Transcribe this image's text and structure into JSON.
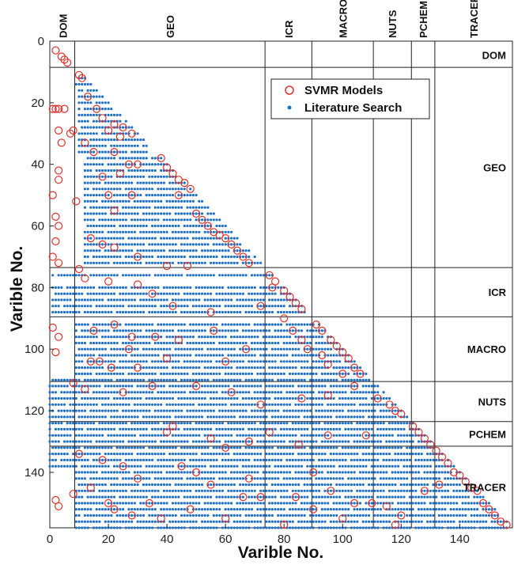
{
  "chart_data": {
    "type": "scatter",
    "xlabel": "Varible No.",
    "ylabel": "Varible No.",
    "xlim": [
      0,
      158
    ],
    "ylim": [
      0,
      158
    ],
    "y_reversed": true,
    "xticks": [
      0,
      20,
      40,
      60,
      80,
      100,
      120,
      140
    ],
    "yticks": [
      0,
      20,
      40,
      60,
      80,
      100,
      120,
      140
    ],
    "grid": false,
    "legend_position": "top-right",
    "legend": [
      {
        "name": "SVMR Models",
        "marker": "open-circle",
        "color": "#e0302a"
      },
      {
        "name": "Literature Search",
        "marker": "filled-dot",
        "color": "#1f6fc4"
      }
    ],
    "group_boundaries": [
      8.5,
      73.5,
      89.5,
      110.5,
      123.5,
      131.5
    ],
    "groups": [
      {
        "name": "DOM",
        "start": 0.5,
        "end": 8.5
      },
      {
        "name": "GEO",
        "start": 8.5,
        "end": 73.5
      },
      {
        "name": "ICR",
        "start": 73.5,
        "end": 89.5
      },
      {
        "name": "MACRO",
        "start": 89.5,
        "end": 110.5
      },
      {
        "name": "NUTS",
        "start": 110.5,
        "end": 123.5
      },
      {
        "name": "PCHEM",
        "start": 123.5,
        "end": 131.5
      },
      {
        "name": "TRACER",
        "start": 131.5,
        "end": 158
      }
    ],
    "series": [
      {
        "name": "Literature Search",
        "note": "dense lower-triangular pattern; representative row ranges listed as [y, x_start, x_end]",
        "row_ranges": [
          [
            12,
            9,
            12
          ],
          [
            14,
            9,
            14
          ],
          [
            16,
            10,
            16
          ],
          [
            18,
            10,
            18
          ],
          [
            20,
            10,
            20
          ],
          [
            22,
            10,
            22
          ],
          [
            24,
            10,
            24
          ],
          [
            26,
            10,
            26
          ],
          [
            28,
            10,
            28
          ],
          [
            30,
            10,
            30
          ],
          [
            32,
            10,
            32
          ],
          [
            34,
            10,
            33
          ],
          [
            36,
            10,
            33
          ],
          [
            38,
            12,
            38
          ],
          [
            40,
            12,
            40
          ],
          [
            42,
            12,
            42
          ],
          [
            44,
            12,
            44
          ],
          [
            46,
            12,
            46
          ],
          [
            48,
            12,
            48
          ],
          [
            50,
            12,
            50
          ],
          [
            52,
            12,
            52
          ],
          [
            54,
            12,
            54
          ],
          [
            56,
            12,
            56
          ],
          [
            58,
            12,
            58
          ],
          [
            60,
            12,
            60
          ],
          [
            62,
            12,
            62
          ],
          [
            64,
            12,
            64
          ],
          [
            66,
            12,
            66
          ],
          [
            68,
            12,
            68
          ],
          [
            70,
            12,
            70
          ],
          [
            72,
            12,
            72
          ],
          [
            76,
            1,
            76
          ],
          [
            80,
            1,
            80
          ],
          [
            82,
            1,
            82
          ],
          [
            84,
            1,
            84
          ],
          [
            86,
            1,
            86
          ],
          [
            88,
            1,
            88
          ],
          [
            92,
            9,
            92
          ],
          [
            94,
            9,
            94
          ],
          [
            96,
            9,
            96
          ],
          [
            98,
            9,
            98
          ],
          [
            100,
            9,
            100
          ],
          [
            102,
            9,
            102
          ],
          [
            104,
            9,
            104
          ],
          [
            106,
            9,
            106
          ],
          [
            108,
            9,
            108
          ],
          [
            110,
            0,
            110
          ],
          [
            112,
            0,
            112
          ],
          [
            114,
            0,
            114
          ],
          [
            116,
            0,
            116
          ],
          [
            118,
            0,
            118
          ],
          [
            120,
            0,
            120
          ],
          [
            122,
            0,
            122
          ],
          [
            124,
            0,
            124
          ],
          [
            126,
            0,
            126
          ],
          [
            128,
            0,
            128
          ],
          [
            130,
            0,
            130
          ],
          [
            132,
            0,
            132
          ],
          [
            134,
            0,
            134
          ],
          [
            136,
            0,
            136
          ],
          [
            138,
            0,
            138
          ],
          [
            140,
            9,
            140
          ],
          [
            142,
            9,
            142
          ],
          [
            144,
            9,
            144
          ],
          [
            146,
            9,
            146
          ],
          [
            148,
            9,
            148
          ],
          [
            150,
            9,
            150
          ],
          [
            152,
            9,
            152
          ],
          [
            154,
            9,
            154
          ],
          [
            156,
            9,
            156
          ],
          [
            158,
            9,
            157
          ]
        ]
      },
      {
        "name": "SVMR Models",
        "points": [
          [
            2,
            3
          ],
          [
            4,
            5
          ],
          [
            5,
            6
          ],
          [
            6,
            7
          ],
          [
            1,
            22
          ],
          [
            2,
            22
          ],
          [
            3,
            22
          ],
          [
            5,
            22
          ],
          [
            3,
            29
          ],
          [
            4,
            33
          ],
          [
            3,
            42
          ],
          [
            3,
            45
          ],
          [
            1,
            50
          ],
          [
            2,
            57
          ],
          [
            3,
            60
          ],
          [
            2,
            65
          ],
          [
            1,
            70
          ],
          [
            3,
            72
          ],
          [
            10,
            11
          ],
          [
            11,
            12
          ],
          [
            13,
            18
          ],
          [
            16,
            22
          ],
          [
            18,
            25
          ],
          [
            22,
            27
          ],
          [
            25,
            28
          ],
          [
            28,
            30
          ],
          [
            20,
            29
          ],
          [
            24,
            31
          ],
          [
            22,
            36
          ],
          [
            15,
            36
          ],
          [
            27,
            40
          ],
          [
            30,
            40
          ],
          [
            18,
            44
          ],
          [
            24,
            43
          ],
          [
            20,
            50
          ],
          [
            28,
            50
          ],
          [
            22,
            55
          ],
          [
            14,
            64
          ],
          [
            18,
            66
          ],
          [
            22,
            67
          ],
          [
            30,
            70
          ],
          [
            9,
            52
          ],
          [
            8,
            29
          ],
          [
            7,
            30
          ],
          [
            12,
            33
          ],
          [
            38,
            38
          ],
          [
            40,
            41
          ],
          [
            42,
            43
          ],
          [
            44,
            45
          ],
          [
            46,
            46
          ],
          [
            48,
            48
          ],
          [
            50,
            56
          ],
          [
            44,
            50
          ],
          [
            52,
            58
          ],
          [
            54,
            60
          ],
          [
            56,
            62
          ],
          [
            58,
            63
          ],
          [
            60,
            64
          ],
          [
            62,
            66
          ],
          [
            64,
            68
          ],
          [
            66,
            70
          ],
          [
            68,
            72
          ],
          [
            75,
            76
          ],
          [
            77,
            78
          ],
          [
            80,
            81
          ],
          [
            82,
            83
          ],
          [
            84,
            85
          ],
          [
            86,
            87
          ],
          [
            76,
            80
          ],
          [
            40,
            73
          ],
          [
            47,
            73
          ],
          [
            10,
            74
          ],
          [
            12,
            77
          ],
          [
            20,
            78
          ],
          [
            30,
            79
          ],
          [
            35,
            82
          ],
          [
            42,
            86
          ],
          [
            55,
            88
          ],
          [
            72,
            86
          ],
          [
            91,
            92
          ],
          [
            93,
            94
          ],
          [
            96,
            97
          ],
          [
            98,
            99
          ],
          [
            100,
            101
          ],
          [
            102,
            103
          ],
          [
            104,
            106
          ],
          [
            106,
            108
          ],
          [
            95,
            105
          ],
          [
            100,
            108
          ],
          [
            80,
            90
          ],
          [
            83,
            94
          ],
          [
            86,
            97
          ],
          [
            88,
            100
          ],
          [
            93,
            102
          ],
          [
            15,
            94
          ],
          [
            22,
            92
          ],
          [
            14,
            104
          ],
          [
            17,
            104
          ],
          [
            21,
            106
          ],
          [
            27,
            100
          ],
          [
            28,
            96
          ],
          [
            30,
            106
          ],
          [
            36,
            96
          ],
          [
            40,
            103
          ],
          [
            44,
            97
          ],
          [
            56,
            94
          ],
          [
            60,
            104
          ],
          [
            67,
            100
          ],
          [
            1,
            93
          ],
          [
            2,
            101
          ],
          [
            3,
            96
          ],
          [
            8,
            111
          ],
          [
            12,
            113
          ],
          [
            25,
            114
          ],
          [
            35,
            112
          ],
          [
            50,
            112
          ],
          [
            62,
            114
          ],
          [
            72,
            118
          ],
          [
            86,
            116
          ],
          [
            95,
            115
          ],
          [
            104,
            112
          ],
          [
            112,
            116
          ],
          [
            116,
            118
          ],
          [
            118,
            120
          ],
          [
            120,
            121
          ],
          [
            124,
            125
          ],
          [
            126,
            127
          ],
          [
            128,
            129
          ],
          [
            130,
            131
          ],
          [
            40,
            127
          ],
          [
            42,
            125
          ],
          [
            55,
            129
          ],
          [
            60,
            132
          ],
          [
            68,
            130
          ],
          [
            75,
            127
          ],
          [
            85,
            131
          ],
          [
            95,
            128
          ],
          [
            108,
            128
          ],
          [
            132,
            133
          ],
          [
            134,
            135
          ],
          [
            136,
            137
          ],
          [
            138,
            140
          ],
          [
            140,
            141
          ],
          [
            142,
            143
          ],
          [
            144,
            145
          ],
          [
            146,
            146
          ],
          [
            148,
            150
          ],
          [
            150,
            152
          ],
          [
            152,
            154
          ],
          [
            154,
            156
          ],
          [
            156,
            157
          ],
          [
            10,
            134
          ],
          [
            18,
            136
          ],
          [
            25,
            138
          ],
          [
            30,
            142
          ],
          [
            45,
            138
          ],
          [
            50,
            140
          ],
          [
            55,
            144
          ],
          [
            68,
            142
          ],
          [
            72,
            148
          ],
          [
            84,
            148
          ],
          [
            90,
            140
          ],
          [
            96,
            146
          ],
          [
            104,
            150
          ],
          [
            115,
            151
          ],
          [
            120,
            154
          ],
          [
            128,
            146
          ],
          [
            133,
            144
          ],
          [
            2,
            149
          ],
          [
            3,
            151
          ],
          [
            8,
            147
          ],
          [
            14,
            145
          ],
          [
            20,
            150
          ],
          [
            22,
            152
          ],
          [
            28,
            154
          ],
          [
            34,
            150
          ],
          [
            38,
            155
          ],
          [
            48,
            152
          ],
          [
            60,
            155
          ],
          [
            66,
            148
          ],
          [
            80,
            157
          ],
          [
            90,
            152
          ],
          [
            100,
            155
          ],
          [
            110,
            150
          ],
          [
            118,
            157
          ]
        ]
      }
    ]
  }
}
